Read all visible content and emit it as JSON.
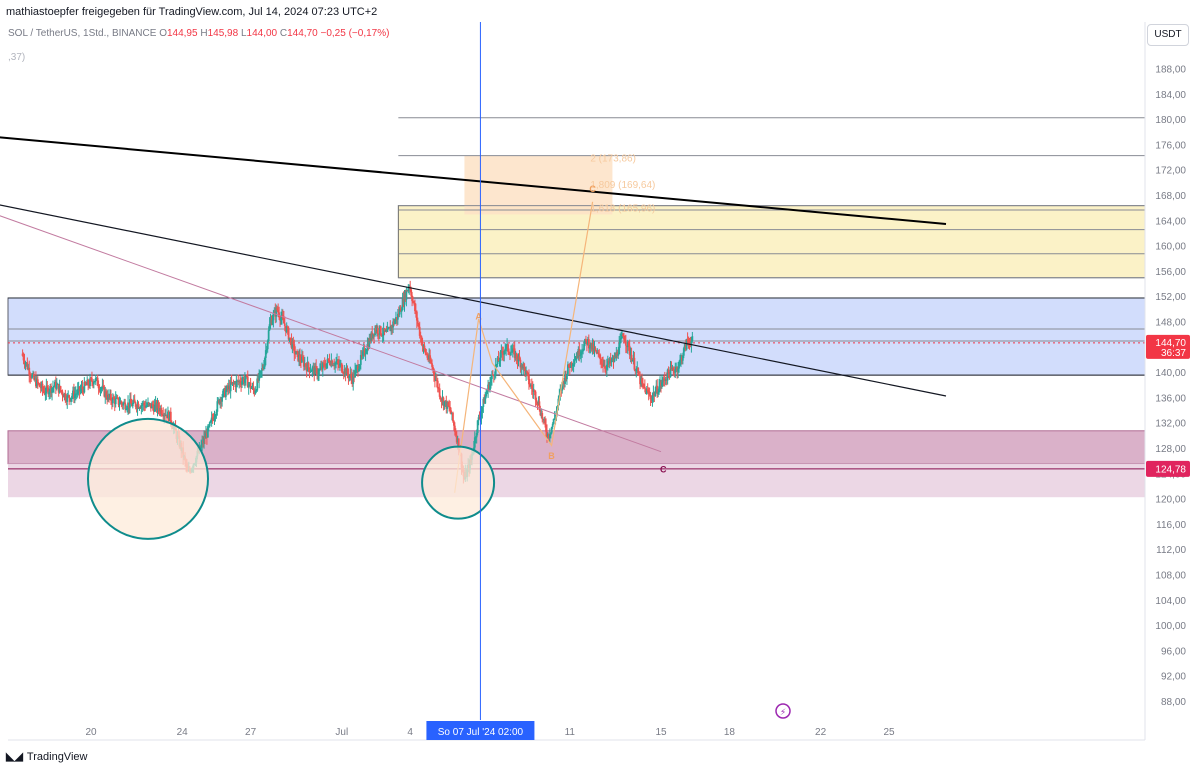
{
  "header": {
    "title": "mathiastoepfer freigegeben für TradingView.com, Jul 14, 2024 07:23 UTC+2"
  },
  "legend": {
    "symbol": "SOL / TetherUS, 1Std., BINANCE",
    "open_label": "O",
    "open": "144,95",
    "high_label": "H",
    "high": "145,98",
    "low_label": "L",
    "low": "144,00",
    "close_label": "C",
    "close": "144,70",
    "change": "−0,25 (−0,17%)",
    "sub": ",37)"
  },
  "currency_button": "USDT",
  "brand": {
    "logo": "◣◢",
    "name": "TradingView"
  },
  "colors": {
    "up": "#26a69a",
    "down": "#ef5350",
    "blue_zone": "#c7d4fb",
    "pink_zone": "#d6a8c3",
    "light_pink_zone": "#ead3e2",
    "yellow_zone": "#fbf1c4",
    "orange_zone": "#fde2c5",
    "circle": "#0f8c8c",
    "crosshair": "#2962ff",
    "price_label": "#f23645",
    "target_label": "#e0245e"
  },
  "chart_data": {
    "type": "candlestick",
    "title": "SOL / TetherUS, 1Std., BINANCE",
    "ylim": [
      85.5,
      190
    ],
    "y_ticks": [
      "188,00",
      "184,00",
      "180,00",
      "176,00",
      "172,00",
      "168,00",
      "164,00",
      "160,00",
      "156,00",
      "152,00",
      "148,00",
      "144,00",
      "140,00",
      "136,00",
      "132,00",
      "128,00",
      "124,00",
      "120,00",
      "116,00",
      "112,00",
      "108,00",
      "104,00",
      "100,00",
      "96,00",
      "92,00",
      "88,00"
    ],
    "x_ticks": [
      {
        "label": "20",
        "day": 20
      },
      {
        "label": "24",
        "day": 24
      },
      {
        "label": "27",
        "day": 27
      },
      {
        "label": "Jul",
        "day": 31
      },
      {
        "label": "4",
        "day": 34
      },
      {
        "label": "11",
        "day": 41
      },
      {
        "label": "15",
        "day": 45
      },
      {
        "label": "18",
        "day": 48
      },
      {
        "label": "22",
        "day": 52
      },
      {
        "label": "25",
        "day": 55
      }
    ],
    "x_unit": "days since Jun 1, 2024",
    "crosshair": {
      "day": 37.08,
      "label": "So 07 Jul '24   02:00"
    },
    "last_price": {
      "label": "144,70",
      "value": 144.7,
      "countdown": "36:37"
    },
    "target_price": {
      "label": "124,78",
      "value": 124.78
    },
    "key_points": [
      [
        17.0,
        143
      ],
      [
        17.5,
        139
      ],
      [
        18.0,
        137
      ],
      [
        18.5,
        138
      ],
      [
        19.0,
        136
      ],
      [
        19.5,
        137
      ],
      [
        20.2,
        139
      ],
      [
        20.8,
        136
      ],
      [
        21.5,
        135
      ],
      [
        22.2,
        135
      ],
      [
        23.0,
        134.5
      ],
      [
        23.5,
        133
      ],
      [
        24.0,
        128
      ],
      [
        24.3,
        124
      ],
      [
        24.7,
        127
      ],
      [
        25.2,
        131
      ],
      [
        25.7,
        136
      ],
      [
        26.2,
        138
      ],
      [
        26.8,
        139
      ],
      [
        27.2,
        137
      ],
      [
        27.6,
        141
      ],
      [
        27.9,
        148
      ],
      [
        28.2,
        150
      ],
      [
        28.6,
        147
      ],
      [
        29.0,
        143
      ],
      [
        29.5,
        141
      ],
      [
        30.0,
        140
      ],
      [
        30.5,
        142
      ],
      [
        31.0,
        141
      ],
      [
        31.5,
        139
      ],
      [
        32.0,
        143
      ],
      [
        32.5,
        147
      ],
      [
        33.0,
        146
      ],
      [
        33.5,
        149
      ],
      [
        34.0,
        154
      ],
      [
        34.3,
        149
      ],
      [
        34.6,
        144
      ],
      [
        35.0,
        141
      ],
      [
        35.4,
        136
      ],
      [
        35.8,
        134
      ],
      [
        36.0,
        131
      ],
      [
        36.2,
        128
      ],
      [
        36.4,
        123
      ],
      [
        36.7,
        126
      ],
      [
        37.0,
        132
      ],
      [
        37.4,
        137
      ],
      [
        37.8,
        141
      ],
      [
        38.2,
        144
      ],
      [
        38.6,
        143
      ],
      [
        39.0,
        141
      ],
      [
        39.3,
        138
      ],
      [
        39.6,
        136
      ],
      [
        39.9,
        132
      ],
      [
        40.1,
        130
      ],
      [
        40.4,
        133
      ],
      [
        40.7,
        138
      ],
      [
        41.0,
        141
      ],
      [
        41.4,
        143
      ],
      [
        41.8,
        145
      ],
      [
        42.2,
        143
      ],
      [
        42.6,
        141
      ],
      [
        43.0,
        142
      ],
      [
        43.4,
        146
      ],
      [
        43.8,
        142
      ],
      [
        44.2,
        138
      ],
      [
        44.6,
        136
      ],
      [
        45.0,
        138
      ],
      [
        45.4,
        140
      ],
      [
        45.8,
        141
      ],
      [
        46.2,
        145
      ],
      [
        46.4,
        145
      ]
    ],
    "horizontal_levels": [
      180.3,
      174.3,
      166.4,
      165.7,
      162.6,
      158.8,
      155.0,
      151.8,
      146.9,
      145.0,
      139.6
    ],
    "zones": [
      {
        "name": "blue-zone",
        "y_top": 151.8,
        "y_bottom": 139.6
      },
      {
        "name": "pink-zone",
        "y_top": 130.8,
        "y_bottom": 125.6
      },
      {
        "name": "light-pink-zone",
        "y_top": 125.6,
        "y_bottom": 120.3
      },
      {
        "name": "yellow-zone",
        "y_top": 166.4,
        "y_bottom": 155.0
      },
      {
        "name": "orange-zone",
        "y_top": 174.3,
        "y_bottom": 165.0
      }
    ],
    "trendlines": [
      {
        "name": "black-thick-trendline",
        "from": [
          16.0,
          177.2
        ],
        "to": [
          57.5,
          163.5
        ]
      },
      {
        "name": "black-thin-trendline",
        "from": [
          16.0,
          166.5
        ],
        "to": [
          57.5,
          136.3
        ]
      },
      {
        "name": "pink-trendline",
        "from": [
          16.0,
          164.8
        ],
        "to": [
          45.0,
          127.5
        ]
      }
    ],
    "fib_labels": [
      {
        "text": "2 (173,86)",
        "day": 41.9,
        "value": 173.86
      },
      {
        "text": "1,809 (169,64)",
        "day": 41.9,
        "value": 169.64
      },
      {
        "text": "1,618 (165,96)",
        "day": 41.9,
        "value": 165.96
      }
    ],
    "wave_labels": [
      {
        "text": "A",
        "day": 37.0,
        "value": 149.0,
        "color": "#f0a060"
      },
      {
        "text": "B",
        "day": 40.2,
        "value": 127.0,
        "color": "#f0a060"
      },
      {
        "text": "C",
        "day": 42.0,
        "value": 169.2,
        "color": "#f0a060"
      },
      {
        "text": "C",
        "day": 45.1,
        "value": 124.8,
        "color": "#880e4f"
      }
    ],
    "circles": [
      {
        "name": "circle-left",
        "day": 22.5,
        "value": 123.2,
        "r": 60
      },
      {
        "name": "circle-right",
        "day": 36.1,
        "value": 122.6,
        "r": 36
      }
    ]
  }
}
